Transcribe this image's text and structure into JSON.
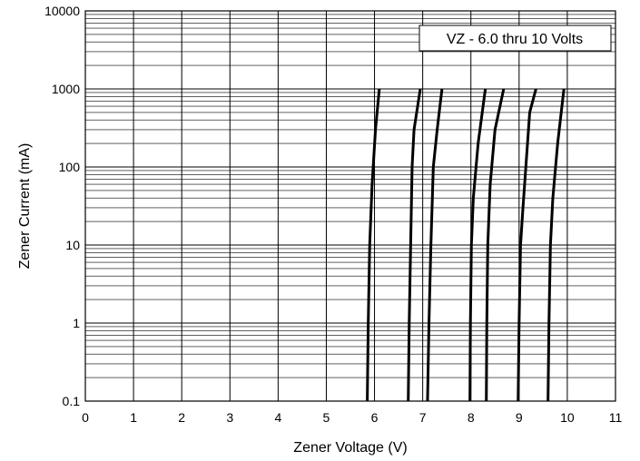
{
  "chart_data": {
    "type": "line",
    "title": "",
    "xlabel": "Zener Voltage (V)",
    "ylabel": "Zener Current (mA)",
    "xlim": [
      0,
      11
    ],
    "ylim": [
      0.1,
      10000
    ],
    "y_scale": "log",
    "grid": true,
    "x_ticks": [
      "0",
      "1",
      "2",
      "3",
      "4",
      "5",
      "6",
      "7",
      "8",
      "9",
      "10",
      "11"
    ],
    "y_ticks": [
      "0.1",
      "1",
      "10",
      "100",
      "1000",
      "10000"
    ],
    "annotation": "VZ - 6.0 thru 10 Volts",
    "annotation_position": "top-right",
    "line_color": "#000000",
    "series": [
      {
        "x": [
          5.85,
          5.87,
          5.9,
          5.95,
          6.02,
          6.1
        ],
        "y": [
          0.1,
          1,
          10,
          60,
          300,
          1000
        ]
      },
      {
        "x": [
          6.7,
          6.72,
          6.75,
          6.78,
          6.82,
          6.95
        ],
        "y": [
          0.1,
          1,
          10,
          100,
          300,
          1000
        ]
      },
      {
        "x": [
          7.1,
          7.13,
          7.17,
          7.22,
          7.3,
          7.4
        ],
        "y": [
          0.1,
          1,
          10,
          100,
          300,
          1000
        ]
      },
      {
        "x": [
          7.98,
          7.99,
          8.01,
          8.05,
          8.15,
          8.3
        ],
        "y": [
          0.1,
          1,
          10,
          40,
          200,
          1000
        ]
      },
      {
        "x": [
          8.32,
          8.33,
          8.35,
          8.4,
          8.5,
          8.68
        ],
        "y": [
          0.1,
          1,
          10,
          60,
          300,
          1000
        ]
      },
      {
        "x": [
          8.98,
          9.0,
          9.03,
          9.08,
          9.22,
          9.35
        ],
        "y": [
          0.1,
          1,
          10,
          30,
          500,
          1000
        ]
      },
      {
        "x": [
          9.6,
          9.62,
          9.65,
          9.7,
          9.8,
          9.93
        ],
        "y": [
          0.1,
          1,
          10,
          40,
          200,
          1000
        ]
      }
    ]
  }
}
